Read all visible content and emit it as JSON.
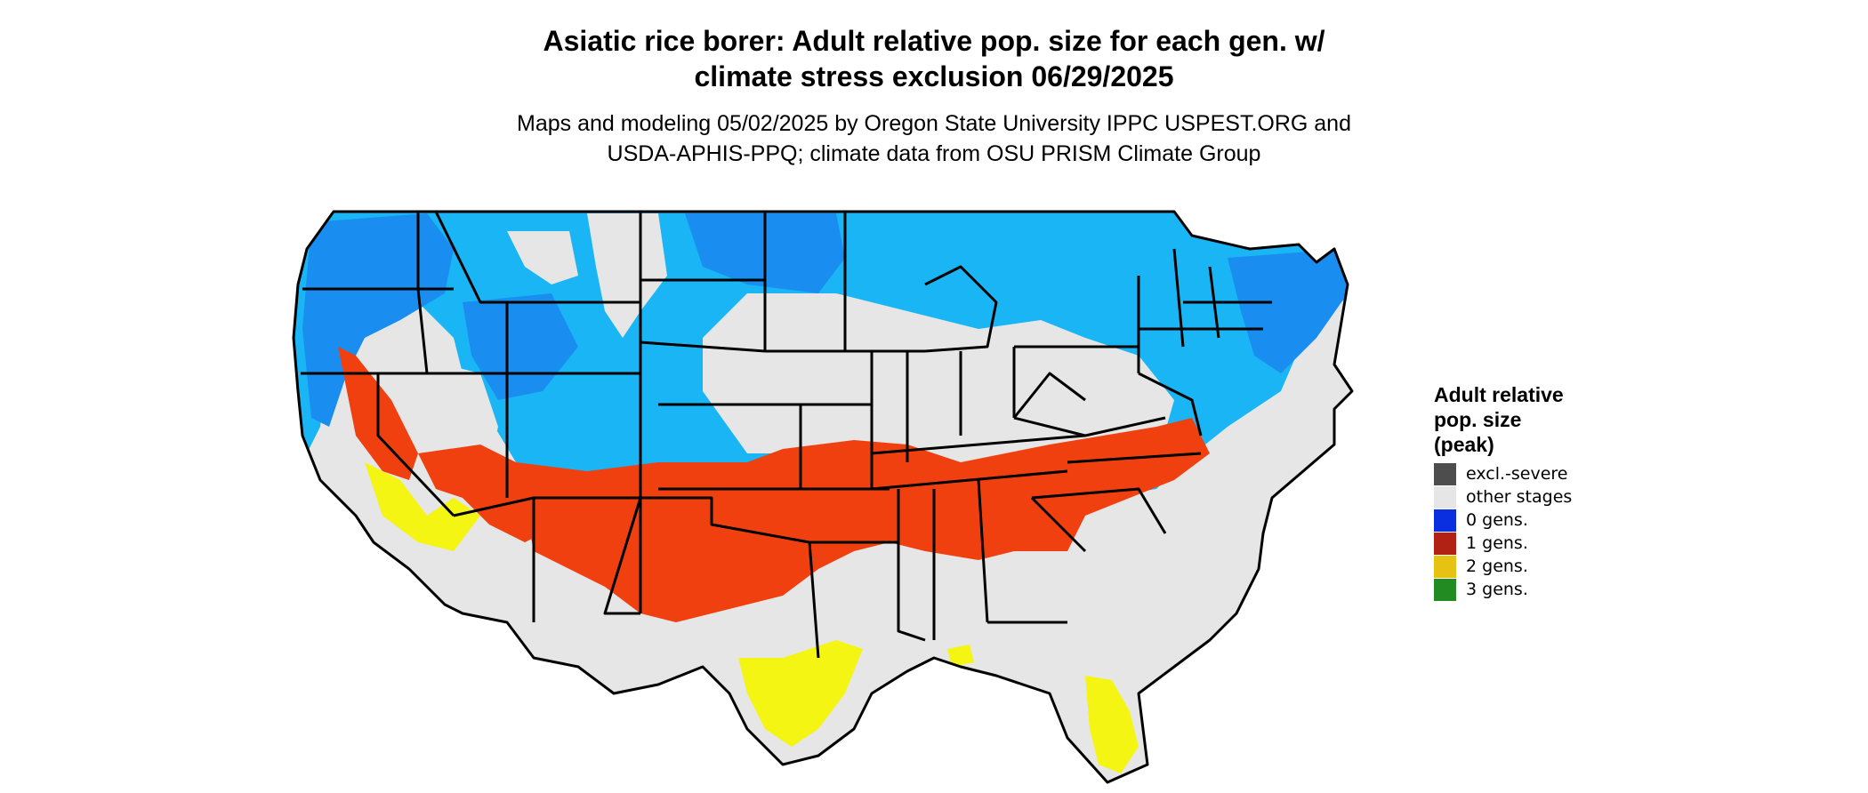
{
  "header": {
    "title_line1": "Asiatic rice borer: Adult relative pop. size for each gen. w/",
    "title_line2": "climate stress exclusion 06/29/2025",
    "subtitle_line1": "Maps and modeling 05/02/2025 by Oregon State University IPPC USPEST.ORG and",
    "subtitle_line2": "USDA-APHIS-PPQ; climate data from OSU PRISM Climate Group"
  },
  "map": {
    "region": "Contiguous United States",
    "colors": {
      "land": "#e6e6e6",
      "border": "#000000",
      "blue_light": "#1ab5f5",
      "blue_mid": "#1a8ef0",
      "orange": "#f04010",
      "yellow": "#f5f514"
    }
  },
  "legend": {
    "title_line1": "Adult relative",
    "title_line2": "pop. size",
    "title_line3": "(peak)",
    "items": [
      {
        "label": "excl.-severe",
        "color": "#4d4d4d"
      },
      {
        "label": "other stages",
        "color": "#e6e6e6"
      },
      {
        "label": "0 gens.",
        "color": "#0a2fe0"
      },
      {
        "label": "1 gens.",
        "color": "#b22214"
      },
      {
        "label": "2 gens.",
        "color": "#e6c212"
      },
      {
        "label": "3 gens.",
        "color": "#228b22"
      }
    ]
  }
}
